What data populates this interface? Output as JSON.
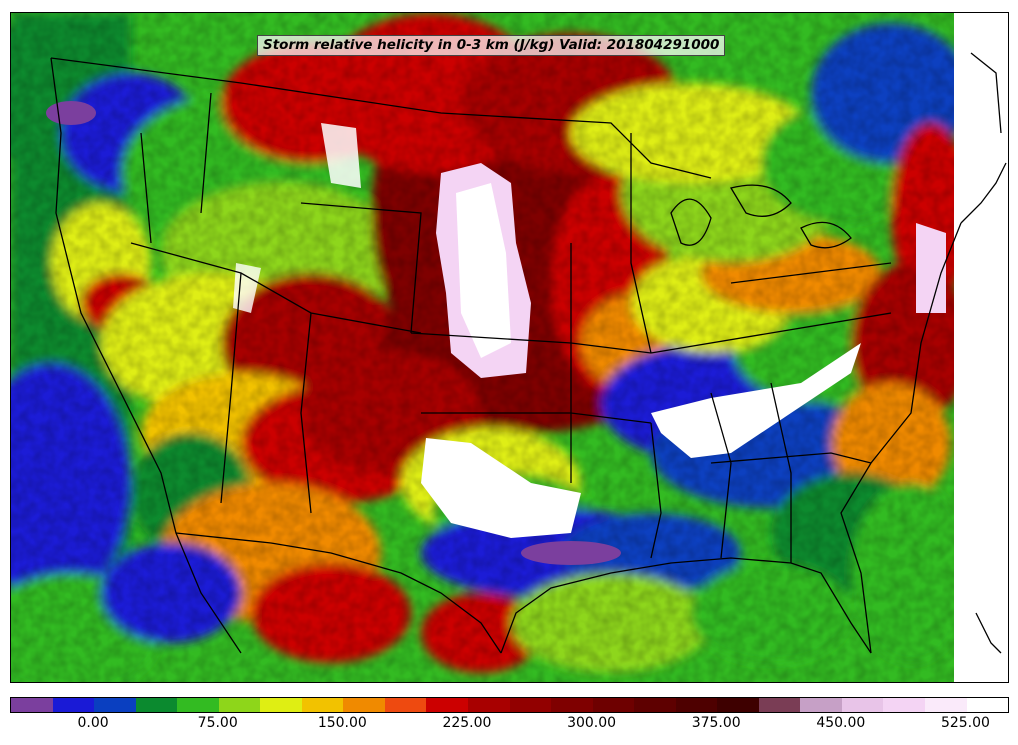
{
  "title": "Storm relative helicity in 0-3 km (J/kg) Valid: 201804291000",
  "colorbar": {
    "colors": [
      "#7b3f9e",
      "#1a1ad6",
      "#0a3fc0",
      "#0b8a2f",
      "#33bb22",
      "#8ed61a",
      "#dfee13",
      "#f2c200",
      "#f08a00",
      "#ee4a10",
      "#cc0000",
      "#a80000",
      "#920000",
      "#7f0000",
      "#6e0000",
      "#5e0000",
      "#4e0000",
      "#3e0000",
      "#7a3d55",
      "#c6a0c6",
      "#e8c4e8",
      "#f4d4f4",
      "#faeafa",
      "#ffffff"
    ],
    "tick_labels": [
      "0.00",
      "75.00",
      "150.00",
      "225.00",
      "300.00",
      "375.00",
      "450.00",
      "525.00"
    ],
    "tick_values": [
      0,
      75,
      150,
      225,
      300,
      375,
      450,
      525
    ],
    "vmin": -50,
    "vmax": 550
  }
}
